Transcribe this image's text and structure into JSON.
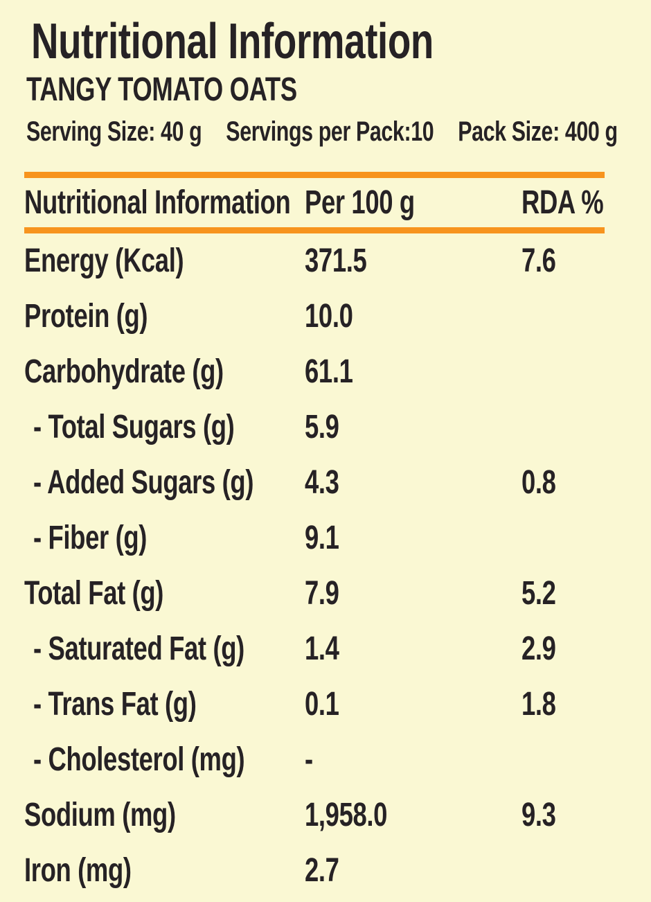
{
  "colors": {
    "background": "#FAF8D3",
    "accent_rule": "#F7941E",
    "text": "#262225"
  },
  "header": {
    "title": "Nutritional Information",
    "product": "TANGY TOMATO OATS",
    "serving_size": "Serving Size: 40 g",
    "servings_per_pack": "Servings per Pack:10",
    "pack_size": "Pack Size: 400 g"
  },
  "table": {
    "columns": [
      "Nutritional Information",
      "Per 100 g",
      "RDA %"
    ],
    "rows": [
      {
        "label": "Energy (Kcal)",
        "per_100g": "371.5",
        "rda": "7.6",
        "indent": false
      },
      {
        "label": "Protein (g)",
        "per_100g": "10.0",
        "rda": "",
        "indent": false
      },
      {
        "label": "Carbohydrate (g)",
        "per_100g": "61.1",
        "rda": "",
        "indent": false
      },
      {
        "label": "- Total Sugars (g)",
        "per_100g": "5.9",
        "rda": "",
        "indent": true
      },
      {
        "label": "- Added Sugars (g)",
        "per_100g": "4.3",
        "rda": "0.8",
        "indent": true
      },
      {
        "label": "- Fiber (g)",
        "per_100g": "9.1",
        "rda": "",
        "indent": true
      },
      {
        "label": "Total Fat (g)",
        "per_100g": "7.9",
        "rda": "5.2",
        "indent": false
      },
      {
        "label": "- Saturated Fat (g)",
        "per_100g": "1.4",
        "rda": "2.9",
        "indent": true
      },
      {
        "label": "- Trans Fat (g)",
        "per_100g": "0.1",
        "rda": "1.8",
        "indent": true
      },
      {
        "label": "- Cholesterol (mg)",
        "per_100g": "-",
        "rda": "",
        "indent": true
      },
      {
        "label": "Sodium (mg)",
        "per_100g": "1,958.0",
        "rda": "9.3",
        "indent": false
      },
      {
        "label": "Iron (mg)",
        "per_100g": "2.7",
        "rda": "",
        "indent": false
      }
    ]
  }
}
